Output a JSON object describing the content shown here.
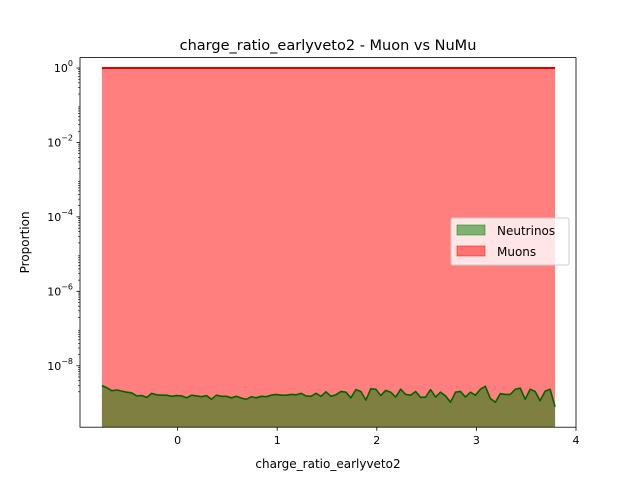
{
  "chart_data": {
    "type": "area",
    "title": "charge_ratio_earlyveto2 - Muon vs NuMu",
    "xlabel": "charge_ratio_earlyveto2",
    "ylabel": "Proportion",
    "xlim": [
      -0.98,
      4.0
    ],
    "ylim_log10": [
      -9.65,
      0.28
    ],
    "yscale": "log",
    "xticks": [
      0,
      1,
      2,
      3,
      4
    ],
    "xtick_labels": [
      "0",
      "1",
      "2",
      "3",
      "4"
    ],
    "yticks_log10": [
      0,
      -2,
      -4,
      -6,
      -8
    ],
    "ytick_mantissa": [
      "10",
      "10",
      "10",
      "10",
      "10"
    ],
    "ytick_exponent": [
      "0",
      "−2",
      "−4",
      "−6",
      "−8"
    ],
    "legend_position": "center-right",
    "grid": false,
    "series": [
      {
        "name": "Neutrinos",
        "color": "#008000",
        "fill_alpha": 0.5,
        "x": [
          -0.76,
          -0.71,
          -0.66,
          -0.61,
          -0.56,
          -0.51,
          -0.46,
          -0.41,
          -0.36,
          -0.31,
          -0.26,
          -0.21,
          -0.16,
          -0.11,
          -0.06,
          -0.01,
          0.04,
          0.09,
          0.14,
          0.19,
          0.24,
          0.29,
          0.34,
          0.39,
          0.44,
          0.49,
          0.54,
          0.59,
          0.64,
          0.69,
          0.74,
          0.79,
          0.84,
          0.89,
          0.94,
          0.99,
          1.04,
          1.09,
          1.14,
          1.19,
          1.24,
          1.29,
          1.34,
          1.39,
          1.44,
          1.49,
          1.54,
          1.59,
          1.64,
          1.69,
          1.74,
          1.79,
          1.84,
          1.89,
          1.94,
          1.99,
          2.04,
          2.09,
          2.14,
          2.19,
          2.24,
          2.29,
          2.34,
          2.39,
          2.44,
          2.49,
          2.54,
          2.59,
          2.64,
          2.69,
          2.74,
          2.79,
          2.84,
          2.89,
          2.94,
          2.99,
          3.04,
          3.09,
          3.14,
          3.19,
          3.24,
          3.29,
          3.34,
          3.39,
          3.44,
          3.49,
          3.54,
          3.59,
          3.64,
          3.69,
          3.74,
          3.79
        ],
        "log10_values": [
          -8.53,
          -8.59,
          -8.67,
          -8.65,
          -8.68,
          -8.71,
          -8.73,
          -8.81,
          -8.8,
          -8.85,
          -8.74,
          -8.78,
          -8.79,
          -8.79,
          -8.82,
          -8.8,
          -8.81,
          -8.86,
          -8.79,
          -8.81,
          -8.83,
          -8.8,
          -8.9,
          -8.79,
          -8.82,
          -8.82,
          -8.86,
          -8.82,
          -8.87,
          -8.9,
          -8.83,
          -8.86,
          -8.82,
          -8.83,
          -8.79,
          -8.77,
          -8.79,
          -8.79,
          -8.77,
          -8.78,
          -8.74,
          -8.81,
          -8.82,
          -8.74,
          -8.82,
          -8.7,
          -8.82,
          -8.78,
          -8.69,
          -8.71,
          -8.86,
          -8.64,
          -8.69,
          -8.92,
          -8.62,
          -8.63,
          -8.8,
          -8.66,
          -8.71,
          -8.84,
          -8.63,
          -8.77,
          -8.79,
          -8.69,
          -8.85,
          -8.84,
          -8.64,
          -8.84,
          -8.71,
          -8.81,
          -8.98,
          -8.71,
          -8.69,
          -8.84,
          -8.71,
          -8.79,
          -8.63,
          -8.55,
          -8.88,
          -8.98,
          -8.75,
          -8.77,
          -8.77,
          -8.63,
          -8.6,
          -8.9,
          -8.63,
          -8.69,
          -8.94,
          -8.68,
          -8.63,
          -9.1
        ]
      },
      {
        "name": "Muons",
        "color": "#ff0000",
        "fill_alpha": 0.5,
        "x": [
          -0.76,
          3.79
        ],
        "log10_values": [
          0.0,
          0.0
        ]
      }
    ]
  }
}
